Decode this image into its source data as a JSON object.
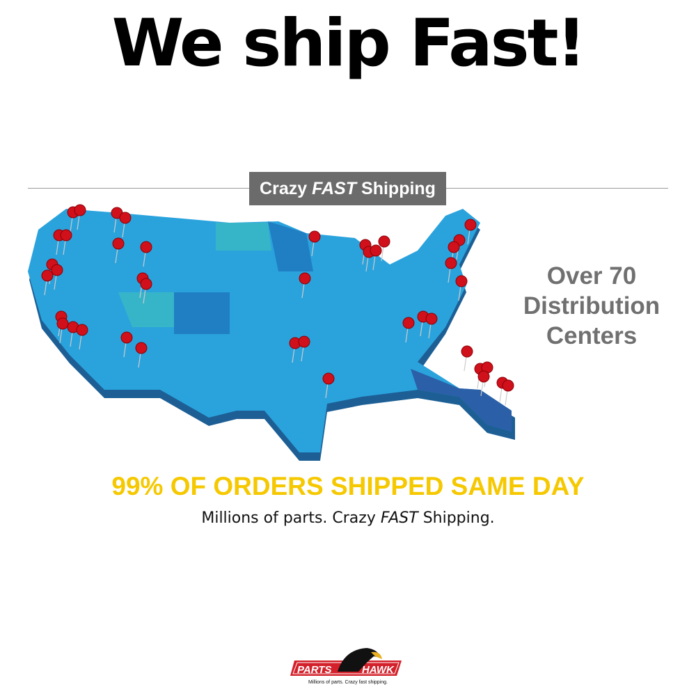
{
  "headline": "We ship Fast!",
  "banner": {
    "pre": "Crazy",
    "em": "FAST",
    "post": "Shipping"
  },
  "side": [
    "Over 70",
    "Distribution",
    "Centers"
  ],
  "orders": "99% OF ORDERS SHIPPED SAME DAY",
  "tagline": {
    "pre": "Millions of parts. Crazy",
    "em": "FAST",
    "post": "Shipping."
  },
  "logo": {
    "left": "PARTS",
    "right": "HAWK",
    "slogan": "Millions of parts. Crazy fast shipping."
  },
  "colors": {
    "map": "#2aa3dd",
    "pin": "#d0101a",
    "orders": "#f5c800",
    "banner": "#6b6b6b",
    "logo_red": "#d3202a"
  },
  "icons": [
    "map-pin-icon",
    "hawk-logo-icon"
  ]
}
